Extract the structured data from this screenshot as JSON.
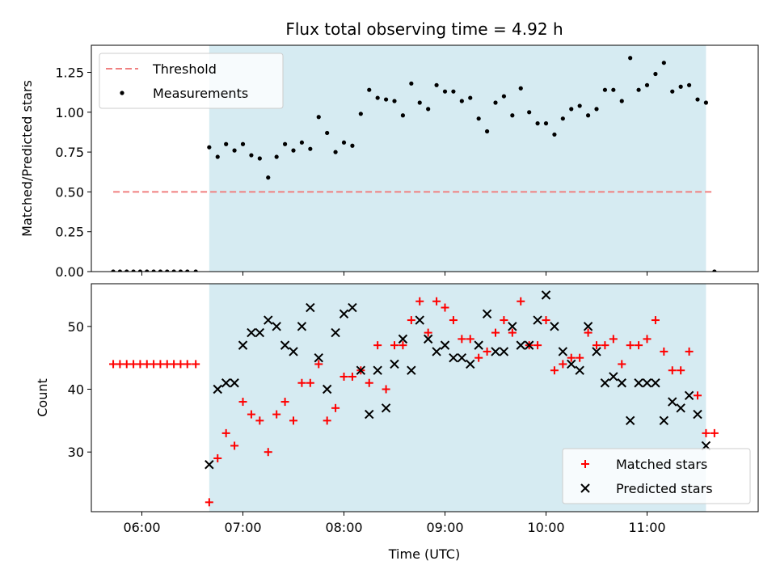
{
  "chart_data": [
    {
      "type": "scatter",
      "title": "Flux total observing time = 4.92 h",
      "xlabel": "",
      "ylabel": "Matched/Predicted stars",
      "xlim": [
        "05:30",
        "12:06"
      ],
      "ylim": [
        0,
        1.42
      ],
      "yticks": [
        0.0,
        0.25,
        0.5,
        0.75,
        1.0,
        1.25
      ],
      "ytick_labels": [
        "0.00",
        "0.25",
        "0.50",
        "0.75",
        "1.00",
        "1.25"
      ],
      "xticks": [
        "06:00",
        "07:00",
        "08:00",
        "09:00",
        "10:00",
        "11:00"
      ],
      "shaded_region": {
        "x_start": "06:40",
        "x_end": "11:35",
        "color": "#add8e6"
      },
      "legend_position": "upper-left",
      "threshold": {
        "name": "Threshold",
        "y": 0.5,
        "x_start": "05:43",
        "x_end": "11:40",
        "color": "#f08080",
        "style": "dashed"
      },
      "series": [
        {
          "name": "Measurements",
          "marker": "dot",
          "color": "#000000",
          "points": [
            [
              "05:43",
              0
            ],
            [
              "05:47",
              0
            ],
            [
              "05:51",
              0
            ],
            [
              "05:55",
              0
            ],
            [
              "05:59",
              0
            ],
            [
              "06:03",
              0
            ],
            [
              "06:07",
              0
            ],
            [
              "06:11",
              0
            ],
            [
              "06:15",
              0
            ],
            [
              "06:19",
              0
            ],
            [
              "06:23",
              0
            ],
            [
              "06:27",
              0
            ],
            [
              "06:32",
              0
            ],
            [
              "06:40",
              0.78
            ],
            [
              "06:45",
              0.72
            ],
            [
              "06:50",
              0.8
            ],
            [
              "06:55",
              0.76
            ],
            [
              "07:00",
              0.8
            ],
            [
              "07:05",
              0.73
            ],
            [
              "07:10",
              0.71
            ],
            [
              "07:15",
              0.59
            ],
            [
              "07:20",
              0.72
            ],
            [
              "07:25",
              0.8
            ],
            [
              "07:30",
              0.76
            ],
            [
              "07:35",
              0.81
            ],
            [
              "07:40",
              0.77
            ],
            [
              "07:45",
              0.97
            ],
            [
              "07:50",
              0.87
            ],
            [
              "07:55",
              0.75
            ],
            [
              "08:00",
              0.81
            ],
            [
              "08:05",
              0.79
            ],
            [
              "08:10",
              0.99
            ],
            [
              "08:15",
              1.14
            ],
            [
              "08:20",
              1.09
            ],
            [
              "08:25",
              1.08
            ],
            [
              "08:30",
              1.07
            ],
            [
              "08:35",
              0.98
            ],
            [
              "08:40",
              1.18
            ],
            [
              "08:45",
              1.06
            ],
            [
              "08:50",
              1.02
            ],
            [
              "08:55",
              1.17
            ],
            [
              "09:00",
              1.13
            ],
            [
              "09:05",
              1.13
            ],
            [
              "09:10",
              1.07
            ],
            [
              "09:15",
              1.09
            ],
            [
              "09:20",
              0.96
            ],
            [
              "09:25",
              0.88
            ],
            [
              "09:30",
              1.06
            ],
            [
              "09:35",
              1.1
            ],
            [
              "09:40",
              0.98
            ],
            [
              "09:45",
              1.15
            ],
            [
              "09:50",
              1.0
            ],
            [
              "09:55",
              0.93
            ],
            [
              "10:00",
              0.93
            ],
            [
              "10:05",
              0.86
            ],
            [
              "10:10",
              0.96
            ],
            [
              "10:15",
              1.02
            ],
            [
              "10:20",
              1.04
            ],
            [
              "10:25",
              0.98
            ],
            [
              "10:30",
              1.02
            ],
            [
              "10:35",
              1.14
            ],
            [
              "10:40",
              1.14
            ],
            [
              "10:45",
              1.07
            ],
            [
              "10:50",
              1.34
            ],
            [
              "10:55",
              1.14
            ],
            [
              "11:00",
              1.17
            ],
            [
              "11:05",
              1.24
            ],
            [
              "11:10",
              1.31
            ],
            [
              "11:15",
              1.13
            ],
            [
              "11:20",
              1.16
            ],
            [
              "11:25",
              1.17
            ],
            [
              "11:30",
              1.08
            ],
            [
              "11:35",
              1.06
            ],
            [
              "11:40",
              0
            ]
          ]
        }
      ]
    },
    {
      "type": "scatter",
      "title": "",
      "xlabel": "Time (UTC)",
      "ylabel": "Count",
      "xlim": [
        "05:30",
        "12:06"
      ],
      "ylim": [
        20.5,
        56.8
      ],
      "yticks": [
        30,
        40,
        50
      ],
      "ytick_labels": [
        "30",
        "40",
        "50"
      ],
      "xticks": [
        "06:00",
        "07:00",
        "08:00",
        "09:00",
        "10:00",
        "11:00"
      ],
      "xtick_labels": [
        "06:00",
        "07:00",
        "08:00",
        "09:00",
        "10:00",
        "11:00"
      ],
      "shaded_region": {
        "x_start": "06:40",
        "x_end": "11:35",
        "color": "#add8e6"
      },
      "legend_position": "lower-right",
      "series": [
        {
          "name": "Matched stars",
          "marker": "plus",
          "color": "#ff0000",
          "points": [
            [
              "05:43",
              44
            ],
            [
              "05:47",
              44
            ],
            [
              "05:51",
              44
            ],
            [
              "05:55",
              44
            ],
            [
              "05:59",
              44
            ],
            [
              "06:03",
              44
            ],
            [
              "06:07",
              44
            ],
            [
              "06:11",
              44
            ],
            [
              "06:15",
              44
            ],
            [
              "06:19",
              44
            ],
            [
              "06:23",
              44
            ],
            [
              "06:27",
              44
            ],
            [
              "06:32",
              44
            ],
            [
              "06:40",
              22
            ],
            [
              "06:45",
              29
            ],
            [
              "06:50",
              33
            ],
            [
              "06:55",
              31
            ],
            [
              "07:00",
              38
            ],
            [
              "07:05",
              36
            ],
            [
              "07:10",
              35
            ],
            [
              "07:15",
              30
            ],
            [
              "07:20",
              36
            ],
            [
              "07:25",
              38
            ],
            [
              "07:30",
              35
            ],
            [
              "07:35",
              41
            ],
            [
              "07:40",
              41
            ],
            [
              "07:45",
              44
            ],
            [
              "07:50",
              35
            ],
            [
              "07:55",
              37
            ],
            [
              "08:00",
              42
            ],
            [
              "08:05",
              42
            ],
            [
              "08:10",
              43
            ],
            [
              "08:15",
              41
            ],
            [
              "08:20",
              47
            ],
            [
              "08:25",
              40
            ],
            [
              "08:30",
              47
            ],
            [
              "08:35",
              47
            ],
            [
              "08:40",
              51
            ],
            [
              "08:45",
              54
            ],
            [
              "08:50",
              49
            ],
            [
              "08:55",
              54
            ],
            [
              "09:00",
              53
            ],
            [
              "09:05",
              51
            ],
            [
              "09:10",
              48
            ],
            [
              "09:15",
              48
            ],
            [
              "09:20",
              45
            ],
            [
              "09:25",
              46
            ],
            [
              "09:30",
              49
            ],
            [
              "09:35",
              51
            ],
            [
              "09:40",
              49
            ],
            [
              "09:45",
              54
            ],
            [
              "09:50",
              47
            ],
            [
              "09:55",
              47
            ],
            [
              "10:00",
              51
            ],
            [
              "10:05",
              43
            ],
            [
              "10:10",
              44
            ],
            [
              "10:15",
              45
            ],
            [
              "10:20",
              45
            ],
            [
              "10:25",
              49
            ],
            [
              "10:30",
              47
            ],
            [
              "10:35",
              47
            ],
            [
              "10:40",
              48
            ],
            [
              "10:45",
              44
            ],
            [
              "10:50",
              47
            ],
            [
              "10:55",
              47
            ],
            [
              "11:00",
              48
            ],
            [
              "11:05",
              51
            ],
            [
              "11:10",
              46
            ],
            [
              "11:15",
              43
            ],
            [
              "11:20",
              43
            ],
            [
              "11:25",
              46
            ],
            [
              "11:30",
              39
            ],
            [
              "11:35",
              33
            ],
            [
              "11:40",
              33
            ]
          ]
        },
        {
          "name": "Predicted stars",
          "marker": "x",
          "color": "#000000",
          "points": [
            [
              "06:40",
              28
            ],
            [
              "06:45",
              40
            ],
            [
              "06:50",
              41
            ],
            [
              "06:55",
              41
            ],
            [
              "07:00",
              47
            ],
            [
              "07:05",
              49
            ],
            [
              "07:10",
              49
            ],
            [
              "07:15",
              51
            ],
            [
              "07:20",
              50
            ],
            [
              "07:25",
              47
            ],
            [
              "07:30",
              46
            ],
            [
              "07:35",
              50
            ],
            [
              "07:40",
              53
            ],
            [
              "07:45",
              45
            ],
            [
              "07:50",
              40
            ],
            [
              "07:55",
              49
            ],
            [
              "08:00",
              52
            ],
            [
              "08:05",
              53
            ],
            [
              "08:10",
              43
            ],
            [
              "08:15",
              36
            ],
            [
              "08:20",
              43
            ],
            [
              "08:25",
              37
            ],
            [
              "08:30",
              44
            ],
            [
              "08:35",
              48
            ],
            [
              "08:40",
              43
            ],
            [
              "08:45",
              51
            ],
            [
              "08:50",
              48
            ],
            [
              "08:55",
              46
            ],
            [
              "09:00",
              47
            ],
            [
              "09:05",
              45
            ],
            [
              "09:10",
              45
            ],
            [
              "09:15",
              44
            ],
            [
              "09:20",
              47
            ],
            [
              "09:25",
              52
            ],
            [
              "09:30",
              46
            ],
            [
              "09:35",
              46
            ],
            [
              "09:40",
              50
            ],
            [
              "09:45",
              47
            ],
            [
              "09:50",
              47
            ],
            [
              "09:55",
              51
            ],
            [
              "10:00",
              55
            ],
            [
              "10:05",
              50
            ],
            [
              "10:10",
              46
            ],
            [
              "10:15",
              44
            ],
            [
              "10:20",
              43
            ],
            [
              "10:25",
              50
            ],
            [
              "10:30",
              46
            ],
            [
              "10:35",
              41
            ],
            [
              "10:40",
              42
            ],
            [
              "10:45",
              41
            ],
            [
              "10:50",
              35
            ],
            [
              "10:55",
              41
            ],
            [
              "11:00",
              41
            ],
            [
              "11:05",
              41
            ],
            [
              "11:10",
              35
            ],
            [
              "11:15",
              38
            ],
            [
              "11:20",
              37
            ],
            [
              "11:25",
              39
            ],
            [
              "11:30",
              36
            ],
            [
              "11:35",
              31
            ]
          ]
        }
      ]
    }
  ]
}
